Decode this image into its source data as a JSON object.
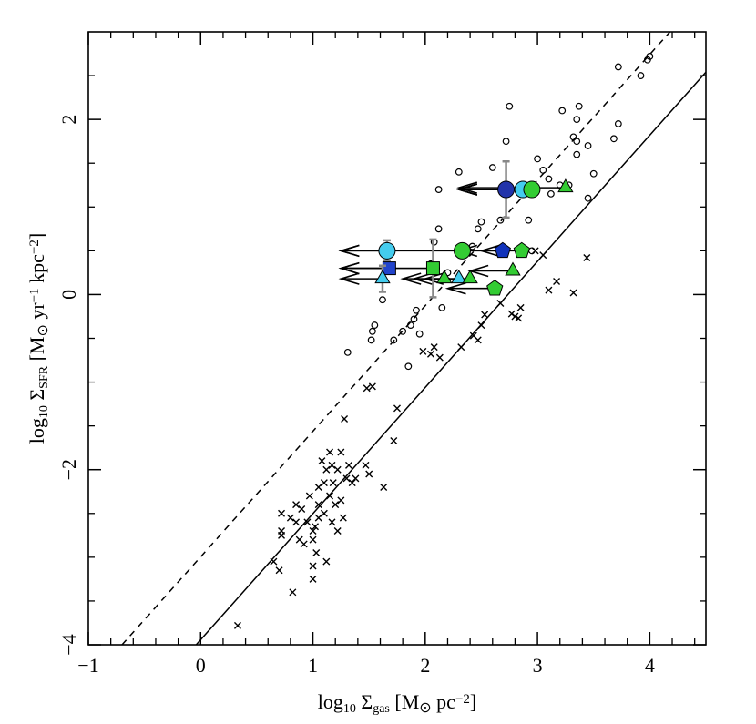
{
  "chart_data": {
    "type": "scatter",
    "xlabel": {
      "parts": [
        {
          "text": "log"
        },
        {
          "text": "10",
          "shift": "sub"
        },
        {
          "text": " Σ"
        },
        {
          "text": "gas",
          "shift": "sub"
        },
        {
          "text": " [M"
        },
        {
          "text": "⊙",
          "shift": "sub"
        },
        {
          "text": "  pc"
        },
        {
          "text": "−2",
          "shift": "super"
        },
        {
          "text": "]"
        }
      ]
    },
    "ylabel": {
      "parts": [
        {
          "text": "log"
        },
        {
          "text": "10",
          "shift": "sub"
        },
        {
          "text": " Σ"
        },
        {
          "text": "SFR",
          "shift": "sub"
        },
        {
          "text": " [M"
        },
        {
          "text": "⊙",
          "shift": "sub"
        },
        {
          "text": "  yr"
        },
        {
          "text": "−1",
          "shift": "super"
        },
        {
          "text": "  kpc"
        },
        {
          "text": "−2",
          "shift": "super"
        },
        {
          "text": "]"
        }
      ]
    },
    "xlim": [
      -1,
      4.5
    ],
    "ylim": [
      -4,
      3
    ],
    "xticks": [
      {
        "value": -1,
        "label": "−1"
      },
      0,
      1,
      2,
      3,
      4
    ],
    "yticks": [
      {
        "value": -4,
        "label": "−4"
      },
      {
        "value": -2,
        "label": "−2"
      },
      0,
      2
    ],
    "xminor_ticks": [
      -0.8,
      -0.6,
      -0.4,
      -0.2,
      0.2,
      0.4,
      0.6,
      0.8,
      1.2,
      1.4,
      1.6,
      1.8,
      2.2,
      2.4,
      2.6,
      2.8,
      3.2,
      3.4,
      3.6,
      3.8,
      4.2,
      4.4
    ],
    "yminor_ticks": [
      -3.5,
      -3,
      -2.5,
      -1.5,
      -1,
      -0.5,
      0.5,
      1,
      1.5,
      2.5
    ],
    "lines": [
      {
        "style": "dashed",
        "x": [
          -0.7,
          4.18
        ],
        "y": [
          -4,
          3
        ]
      },
      {
        "style": "solid",
        "x": [
          -0.04,
          4.5
        ],
        "y": [
          -4,
          2.54
        ]
      }
    ],
    "crosses": {
      "x": [
        0.33,
        0.65,
        0.7,
        0.72,
        0.72,
        0.8,
        0.85,
        0.85,
        0.88,
        0.9,
        0.92,
        0.95,
        0.97,
        1.0,
        1.0,
        1.02,
        1.03,
        1.05,
        1.05,
        1.05,
        1.08,
        1.1,
        1.1,
        1.12,
        1.15,
        1.17,
        1.18,
        1.2,
        1.22,
        1.22,
        1.25,
        1.25,
        1.27,
        1.3,
        1.32,
        1.35,
        1.38,
        1.0,
        1.0,
        1.12,
        0.82,
        0.72,
        1.15,
        1.17,
        1.47,
        1.5,
        1.63,
        1.28,
        1.48,
        1.53,
        1.75,
        1.72,
        1.98,
        2.05,
        2.08,
        2.13,
        2.32,
        2.43,
        2.47,
        2.5,
        2.53,
        2.67,
        2.77,
        2.83,
        2.8,
        2.85,
        2.98,
        3.05,
        3.1,
        3.17,
        3.32,
        3.44
      ],
      "y": [
        -3.78,
        -3.05,
        -3.15,
        -2.5,
        -2.7,
        -2.55,
        -2.4,
        -2.6,
        -2.8,
        -2.45,
        -2.85,
        -2.6,
        -2.3,
        -2.7,
        -2.8,
        -2.65,
        -2.95,
        -2.4,
        -2.55,
        -2.2,
        -1.9,
        -2.15,
        -2.5,
        -2.0,
        -2.3,
        -2.6,
        -2.15,
        -2.4,
        -2.0,
        -2.7,
        -1.8,
        -2.35,
        -2.55,
        -2.1,
        -1.95,
        -2.15,
        -2.1,
        -3.25,
        -3.1,
        -3.05,
        -3.4,
        -2.75,
        -1.8,
        -1.95,
        -1.95,
        -2.05,
        -2.2,
        -1.42,
        -1.07,
        -1.05,
        -1.3,
        -1.67,
        -0.65,
        -0.68,
        -0.6,
        -0.72,
        -0.6,
        -0.47,
        -0.52,
        -0.35,
        -0.23,
        -0.1,
        -0.22,
        -0.27,
        -0.25,
        -0.15,
        0.5,
        0.45,
        0.05,
        0.15,
        0.02,
        0.42
      ]
    },
    "open_circles": {
      "x": [
        1.31,
        1.52,
        1.53,
        1.55,
        1.62,
        1.72,
        1.8,
        1.85,
        1.87,
        1.9,
        1.92,
        1.95,
        2.05,
        2.08,
        2.12,
        2.12,
        2.2,
        2.3,
        2.42,
        2.47,
        2.5,
        2.6,
        2.68,
        2.72,
        2.75,
        2.67,
        2.92,
        2.95,
        3.0,
        3.05,
        3.1,
        3.12,
        3.2,
        3.22,
        3.28,
        3.32,
        3.35,
        3.35,
        3.37,
        3.35,
        3.45,
        3.45,
        3.5,
        3.68,
        3.72,
        3.72,
        3.92,
        3.98,
        4.0,
        2.15,
        2.1
      ],
      "y": [
        -0.66,
        -0.52,
        -0.42,
        -0.35,
        -0.06,
        -0.52,
        -0.42,
        -0.82,
        -0.35,
        -0.28,
        -0.18,
        -0.45,
        0.35,
        0.6,
        0.75,
        1.2,
        0.25,
        1.4,
        0.55,
        0.75,
        0.83,
        1.45,
        1.2,
        1.75,
        2.15,
        0.85,
        0.85,
        0.5,
        1.55,
        1.42,
        1.32,
        1.15,
        1.25,
        2.1,
        1.25,
        1.8,
        1.75,
        2.0,
        2.15,
        1.6,
        1.7,
        1.1,
        1.38,
        1.78,
        1.95,
        2.6,
        2.5,
        2.68,
        2.72,
        -0.15,
        0.3
      ]
    },
    "limits": [
      {
        "marker": "circle",
        "color": "#2233aa",
        "x": 2.72,
        "y": 1.2,
        "arrow_x": 2.3,
        "yerr": 0.32
      },
      {
        "marker": "circle",
        "color": "#44ccee",
        "x": 2.87,
        "y": 1.2,
        "arrow_x": 2.3
      },
      {
        "marker": "circle",
        "color": "#33cc33",
        "x": 2.95,
        "y": 1.2,
        "arrow_x": 2.3
      },
      {
        "marker": "triangle",
        "color": "#33cc33",
        "x": 3.25,
        "y": 1.22,
        "arrow_x": 2.3
      },
      {
        "marker": "circle",
        "color": "#44ccee",
        "x": 1.66,
        "y": 0.5,
        "arrow_x": 1.25,
        "yerr": 0.12
      },
      {
        "marker": "circle",
        "color": "#33cc33",
        "x": 2.33,
        "y": 0.5,
        "arrow_x": 1.25
      },
      {
        "marker": "pentagon",
        "color": "#1133bb",
        "x": 2.69,
        "y": 0.5,
        "arrow_x": 2.3
      },
      {
        "marker": "pentagon",
        "color": "#33cc33",
        "x": 2.86,
        "y": 0.5,
        "arrow_x": 2.5
      },
      {
        "marker": "square",
        "color": "#2244cc",
        "x": 1.68,
        "y": 0.3,
        "arrow_x": 1.25
      },
      {
        "marker": "square",
        "color": "#33cc33",
        "x": 2.07,
        "y": 0.3,
        "arrow_x": 1.25,
        "yerr": 0.33
      },
      {
        "marker": "triangle",
        "color": "#44ccee",
        "x": 1.62,
        "y": 0.18,
        "arrow_x": 1.25,
        "yerr": 0.15
      },
      {
        "marker": "triangle",
        "color": "#33cc33",
        "x": 2.17,
        "y": 0.18,
        "arrow_x": 1.8
      },
      {
        "marker": "triangle",
        "color": "#44ccee",
        "x": 2.3,
        "y": 0.18,
        "arrow_x": 1.9
      },
      {
        "marker": "triangle",
        "color": "#33cc33",
        "x": 2.4,
        "y": 0.18,
        "arrow_x": 2.0
      },
      {
        "marker": "triangle",
        "color": "#33cc33",
        "x": 2.78,
        "y": 0.27,
        "arrow_x": 2.4
      },
      {
        "marker": "pentagon",
        "color": "#33cc33",
        "x": 2.62,
        "y": 0.07,
        "arrow_x": 2.2,
        "yerr": 0.03
      }
    ]
  }
}
